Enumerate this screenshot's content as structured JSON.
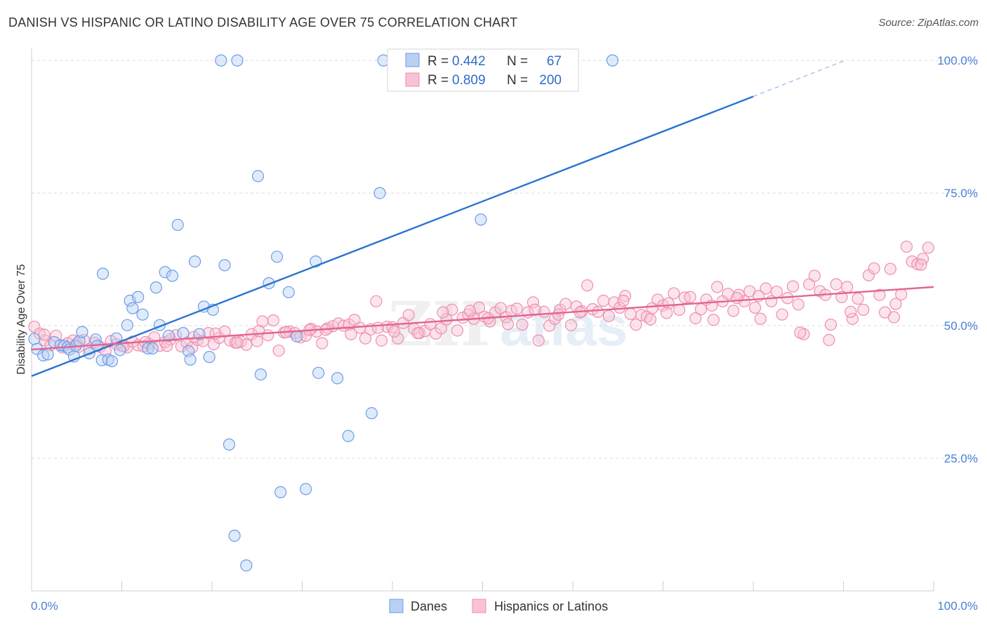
{
  "page": {
    "title": "DANISH VS HISPANIC OR LATINO DISABILITY AGE OVER 75 CORRELATION CHART",
    "source": "Source: ZipAtlas.com"
  },
  "watermark": {
    "zip": "ZIP",
    "atlas": "atlas"
  },
  "stats": [
    {
      "r_label": "R =",
      "r": "0.442",
      "n_label": "N =",
      "n": "67",
      "color": "#6e9de8"
    },
    {
      "r_label": "R =",
      "r": "0.809",
      "n_label": "N =",
      "n": "200",
      "color": "#f08db0"
    }
  ],
  "chart_data": {
    "type": "scatter",
    "title": "DANISH VS HISPANIC OR LATINO DISABILITY AGE OVER 75 CORRELATION CHART",
    "xlabel": "",
    "ylabel": "Disability Age Over 75",
    "xlim": [
      0,
      100
    ],
    "ylim": [
      0,
      102
    ],
    "x_tick_labels": [
      "0.0%",
      "100.0%"
    ],
    "y_ticks": [
      25,
      50,
      75,
      100
    ],
    "y_tick_labels": [
      "25.0%",
      "50.0%",
      "75.0%",
      "100.0%"
    ],
    "grid": true,
    "legend_position": "bottom-center",
    "series": [
      {
        "name": "Danes",
        "color": "#6e9de8",
        "fill": "#b9d0f3",
        "trend": {
          "x0": 0,
          "y0": 40.5,
          "x1": 80,
          "y1": 93.2,
          "dash_to_x": 90,
          "dash_to_y": 99.9,
          "color": "#2a73d0"
        },
        "points": [
          [
            0.3,
            47.5
          ],
          [
            0.6,
            45.6
          ],
          [
            1.3,
            44.4
          ],
          [
            1.8,
            44.6
          ],
          [
            2.5,
            46.9
          ],
          [
            3.2,
            46.3
          ],
          [
            3.6,
            46.2
          ],
          [
            4.0,
            45.9
          ],
          [
            4.2,
            45.5
          ],
          [
            4.7,
            44.2
          ],
          [
            4.9,
            46.2
          ],
          [
            5.3,
            47.1
          ],
          [
            5.6,
            48.8
          ],
          [
            6.4,
            44.8
          ],
          [
            7.1,
            47.4
          ],
          [
            7.3,
            46.2
          ],
          [
            7.8,
            43.5
          ],
          [
            7.9,
            59.8
          ],
          [
            8.5,
            43.6
          ],
          [
            8.9,
            43.3
          ],
          [
            9.4,
            47.6
          ],
          [
            9.8,
            45.4
          ],
          [
            10.6,
            50.1
          ],
          [
            10.9,
            54.7
          ],
          [
            11.2,
            53.3
          ],
          [
            11.8,
            55.4
          ],
          [
            12.3,
            52.1
          ],
          [
            12.9,
            45.7
          ],
          [
            13.4,
            45.7
          ],
          [
            13.8,
            57.2
          ],
          [
            14.2,
            50.1
          ],
          [
            14.8,
            60.1
          ],
          [
            15.2,
            48.1
          ],
          [
            15.6,
            59.4
          ],
          [
            16.2,
            69.0
          ],
          [
            16.8,
            48.6
          ],
          [
            17.4,
            45.2
          ],
          [
            17.6,
            43.6
          ],
          [
            18.1,
            62.1
          ],
          [
            18.6,
            48.4
          ],
          [
            19.1,
            53.6
          ],
          [
            19.7,
            44.1
          ],
          [
            20.1,
            53.0
          ],
          [
            21.0,
            100.0
          ],
          [
            21.4,
            61.4
          ],
          [
            21.9,
            27.6
          ],
          [
            22.5,
            10.4
          ],
          [
            22.8,
            100.0
          ],
          [
            23.8,
            4.8
          ],
          [
            25.1,
            78.2
          ],
          [
            25.4,
            40.8
          ],
          [
            26.3,
            58.0
          ],
          [
            27.2,
            63.0
          ],
          [
            27.6,
            18.6
          ],
          [
            28.5,
            56.3
          ],
          [
            29.4,
            48.0
          ],
          [
            30.4,
            19.2
          ],
          [
            31.5,
            62.1
          ],
          [
            31.8,
            41.1
          ],
          [
            33.9,
            40.1
          ],
          [
            35.1,
            29.2
          ],
          [
            37.7,
            33.5
          ],
          [
            38.6,
            75.0
          ],
          [
            39.0,
            100.0
          ],
          [
            49.7,
            100.0
          ],
          [
            49.8,
            70.0
          ],
          [
            64.4,
            100.0
          ]
        ]
      },
      {
        "name": "Hispanics or Latinos",
        "color": "#f08db0",
        "fill": "#f7c3d5",
        "trend": {
          "x0": 0,
          "y0": 45.5,
          "x1": 100,
          "y1": 57.3,
          "color": "#e2658f"
        },
        "points": [
          [
            0.3,
            49.8
          ],
          [
            0.9,
            48.5
          ],
          [
            1.5,
            47.2
          ],
          [
            2.1,
            46.3
          ],
          [
            2.7,
            48.1
          ],
          [
            3.4,
            45.9
          ],
          [
            4.0,
            46.7
          ],
          [
            4.6,
            47.2
          ],
          [
            5.2,
            46.0
          ],
          [
            5.8,
            47.3
          ],
          [
            6.4,
            45.6
          ],
          [
            7.0,
            46.8
          ],
          [
            7.6,
            46.0
          ],
          [
            8.2,
            45.2
          ],
          [
            8.8,
            47.1
          ],
          [
            9.4,
            46.5
          ],
          [
            10.0,
            46.2
          ],
          [
            10.6,
            45.9
          ],
          [
            11.2,
            47.0
          ],
          [
            11.8,
            46.3
          ],
          [
            12.4,
            46.1
          ],
          [
            13.0,
            46.6
          ],
          [
            13.6,
            47.8
          ],
          [
            14.2,
            46.2
          ],
          [
            14.8,
            46.9
          ],
          [
            15.4,
            47.4
          ],
          [
            16.0,
            48.2
          ],
          [
            16.6,
            46.1
          ],
          [
            17.2,
            46.8
          ],
          [
            17.8,
            45.9
          ],
          [
            18.4,
            47.3
          ],
          [
            19.0,
            47.1
          ],
          [
            19.6,
            48.6
          ],
          [
            20.2,
            46.5
          ],
          [
            20.8,
            47.7
          ],
          [
            21.4,
            48.9
          ],
          [
            22.0,
            47.2
          ],
          [
            22.6,
            46.8
          ],
          [
            23.2,
            47.0
          ],
          [
            23.8,
            46.4
          ],
          [
            24.4,
            48.4
          ],
          [
            25.0,
            47.1
          ],
          [
            25.6,
            50.8
          ],
          [
            26.2,
            48.2
          ],
          [
            26.8,
            51.0
          ],
          [
            27.4,
            45.3
          ],
          [
            28.0,
            48.7
          ],
          [
            28.6,
            48.9
          ],
          [
            29.2,
            48.6
          ],
          [
            29.8,
            47.8
          ],
          [
            30.4,
            48.1
          ],
          [
            31.0,
            49.4
          ],
          [
            31.6,
            48.9
          ],
          [
            32.2,
            46.7
          ],
          [
            32.8,
            49.5
          ],
          [
            33.4,
            49.9
          ],
          [
            34.0,
            50.4
          ],
          [
            34.6,
            50.0
          ],
          [
            35.2,
            50.2
          ],
          [
            35.8,
            51.1
          ],
          [
            36.4,
            49.6
          ],
          [
            37.0,
            47.6
          ],
          [
            37.6,
            49.3
          ],
          [
            38.2,
            54.6
          ],
          [
            38.8,
            47.2
          ],
          [
            39.4,
            49.8
          ],
          [
            40.0,
            49.7
          ],
          [
            40.6,
            47.6
          ],
          [
            41.2,
            50.5
          ],
          [
            41.8,
            52.0
          ],
          [
            42.4,
            49.4
          ],
          [
            43.0,
            48.6
          ],
          [
            43.6,
            49.0
          ],
          [
            44.2,
            50.3
          ],
          [
            44.8,
            48.5
          ],
          [
            45.4,
            49.5
          ],
          [
            46.0,
            51.2
          ],
          [
            46.6,
            53.0
          ],
          [
            47.2,
            49.1
          ],
          [
            47.8,
            51.5
          ],
          [
            48.4,
            52.1
          ],
          [
            49.0,
            51.3
          ],
          [
            49.6,
            53.4
          ],
          [
            50.2,
            51.7
          ],
          [
            50.8,
            50.8
          ],
          [
            51.4,
            52.5
          ],
          [
            52.0,
            53.3
          ],
          [
            52.6,
            51.6
          ],
          [
            53.2,
            52.8
          ],
          [
            53.8,
            53.2
          ],
          [
            54.4,
            50.2
          ],
          [
            55.0,
            52.5
          ],
          [
            55.6,
            54.4
          ],
          [
            56.2,
            47.2
          ],
          [
            56.8,
            52.6
          ],
          [
            57.4,
            50.0
          ],
          [
            58.0,
            51.3
          ],
          [
            58.6,
            53.0
          ],
          [
            59.2,
            54.1
          ],
          [
            59.8,
            50.1
          ],
          [
            60.4,
            53.6
          ],
          [
            61.0,
            52.7
          ],
          [
            61.6,
            57.6
          ],
          [
            62.2,
            53.1
          ],
          [
            62.8,
            52.6
          ],
          [
            63.4,
            54.7
          ],
          [
            64.0,
            51.8
          ],
          [
            64.6,
            54.4
          ],
          [
            65.2,
            53.4
          ],
          [
            65.8,
            55.6
          ],
          [
            66.4,
            52.2
          ],
          [
            67.0,
            50.2
          ],
          [
            67.6,
            52.0
          ],
          [
            68.2,
            51.7
          ],
          [
            68.8,
            53.3
          ],
          [
            69.4,
            54.9
          ],
          [
            70.0,
            53.8
          ],
          [
            70.6,
            54.2
          ],
          [
            71.2,
            56.1
          ],
          [
            71.8,
            53.0
          ],
          [
            72.4,
            55.3
          ],
          [
            73.0,
            55.4
          ],
          [
            73.6,
            51.4
          ],
          [
            74.2,
            53.1
          ],
          [
            74.8,
            54.9
          ],
          [
            75.4,
            53.8
          ],
          [
            76.0,
            57.3
          ],
          [
            76.6,
            54.6
          ],
          [
            77.2,
            56.0
          ],
          [
            77.8,
            52.8
          ],
          [
            78.4,
            55.8
          ],
          [
            79.0,
            54.6
          ],
          [
            79.6,
            56.5
          ],
          [
            80.2,
            53.4
          ],
          [
            80.8,
            51.3
          ],
          [
            81.4,
            57.0
          ],
          [
            82.0,
            54.6
          ],
          [
            82.6,
            56.4
          ],
          [
            83.2,
            52.1
          ],
          [
            83.8,
            55.2
          ],
          [
            84.4,
            57.4
          ],
          [
            85.0,
            54.0
          ],
          [
            85.6,
            48.4
          ],
          [
            86.2,
            57.8
          ],
          [
            86.8,
            59.4
          ],
          [
            87.4,
            56.5
          ],
          [
            88.0,
            55.8
          ],
          [
            88.6,
            50.2
          ],
          [
            89.2,
            57.8
          ],
          [
            89.8,
            55.4
          ],
          [
            90.4,
            57.3
          ],
          [
            91.0,
            51.3
          ],
          [
            91.6,
            55.1
          ],
          [
            92.2,
            53.0
          ],
          [
            92.8,
            59.5
          ],
          [
            93.4,
            60.8
          ],
          [
            94.0,
            55.8
          ],
          [
            94.6,
            52.5
          ],
          [
            95.2,
            60.7
          ],
          [
            95.8,
            54.1
          ],
          [
            96.4,
            55.9
          ],
          [
            97.0,
            64.9
          ],
          [
            97.6,
            62.1
          ],
          [
            98.2,
            61.6
          ],
          [
            98.8,
            62.6
          ],
          [
            99.4,
            64.7
          ],
          [
            1.4,
            48.3
          ],
          [
            10.2,
            46.1
          ],
          [
            20.4,
            48.5
          ],
          [
            30.8,
            49.2
          ],
          [
            40.2,
            48.9
          ],
          [
            50.6,
            51.4
          ],
          [
            60.8,
            52.5
          ],
          [
            70.4,
            52.4
          ],
          [
            80.6,
            55.6
          ],
          [
            90.8,
            52.6
          ],
          [
            15.0,
            46.2
          ],
          [
            25.2,
            49.0
          ],
          [
            35.4,
            48.4
          ],
          [
            45.6,
            52.5
          ],
          [
            55.8,
            53.0
          ],
          [
            65.6,
            54.7
          ],
          [
            75.6,
            51.1
          ],
          [
            85.2,
            48.7
          ],
          [
            95.6,
            51.6
          ],
          [
            5.0,
            46.6
          ],
          [
            18.0,
            47.9
          ],
          [
            28.2,
            48.8
          ],
          [
            38.4,
            49.6
          ],
          [
            48.6,
            52.8
          ],
          [
            58.4,
            52.1
          ],
          [
            68.6,
            51.2
          ],
          [
            78.2,
            55.2
          ],
          [
            88.4,
            47.3
          ],
          [
            98.6,
            61.5
          ],
          [
            12.6,
            46.9
          ],
          [
            22.8,
            46.8
          ],
          [
            32.6,
            49.2
          ],
          [
            42.8,
            48.6
          ],
          [
            52.8,
            50.3
          ]
        ]
      }
    ]
  }
}
